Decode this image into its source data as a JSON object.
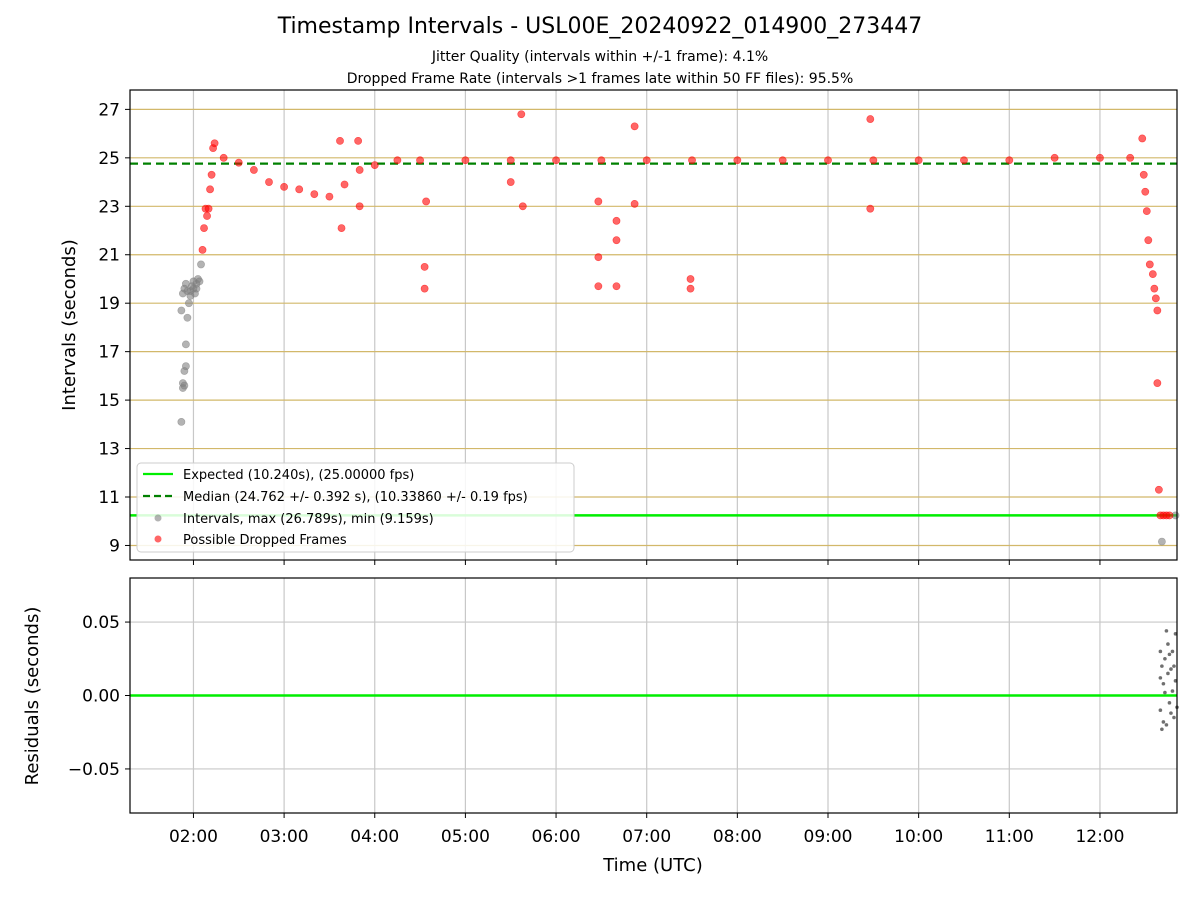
{
  "title": "Timestamp Intervals - USL00E_20240922_014900_273447",
  "subtitle1": "Jitter Quality (intervals within +/-1 frame): 4.1%",
  "subtitle2": "Dropped Frame Rate (intervals >1 frames late within 50 FF files): 95.5%",
  "colors": {
    "expected": "#00ee00",
    "median": "#008000",
    "intervals": "#808080",
    "dropped": "#ff0000",
    "hgrid_top": "#d2b86a",
    "grid": "#c8c8c8"
  },
  "chart_data": [
    {
      "type": "scatter",
      "panel": "intervals",
      "ylabel": "Intervals (seconds)",
      "xlabel": "",
      "xlim": [
        "01:18",
        "12:51"
      ],
      "ylim": [
        8.4,
        27.8
      ],
      "yticks": [
        9,
        11,
        13,
        15,
        17,
        19,
        21,
        23,
        25,
        27
      ],
      "expected_line": 10.24,
      "median_line": 24.762,
      "grid": true,
      "legend_position": "lower-left",
      "legend": [
        {
          "label": "Expected (10.240s), (25.00000 fps)",
          "style": "solid-line",
          "color": "#00ee00"
        },
        {
          "label": "Median (24.762 +/- 0.392 s), (10.33860 +/- 0.19 fps)",
          "style": "dashed-line",
          "color": "#008000"
        },
        {
          "label": "Intervals, max (26.789s), min (9.159s)",
          "style": "marker",
          "color": "#808080"
        },
        {
          "label": "Possible Dropped Frames",
          "style": "marker",
          "color": "#ff0000"
        }
      ],
      "series": [
        {
          "name": "Intervals, max (26.789s), min (9.159s)",
          "points": [
            [
              "01:52",
              14.1
            ],
            [
              "01:53",
              15.5
            ],
            [
              "01:53",
              15.7
            ],
            [
              "01:54",
              15.6
            ],
            [
              "01:54",
              16.2
            ],
            [
              "01:55",
              16.4
            ],
            [
              "01:55",
              17.3
            ],
            [
              "01:52",
              18.7
            ],
            [
              "01:53",
              19.4
            ],
            [
              "01:54",
              19.6
            ],
            [
              "01:55",
              19.8
            ],
            [
              "01:56",
              18.4
            ],
            [
              "01:57",
              19.0
            ],
            [
              "01:58",
              19.5
            ],
            [
              "01:59",
              19.7
            ],
            [
              "02:00",
              19.6
            ],
            [
              "02:01",
              19.4
            ],
            [
              "02:02",
              19.8
            ],
            [
              "02:03",
              20.0
            ],
            [
              "02:04",
              19.9
            ],
            [
              "02:05",
              20.6
            ],
            [
              "01:56",
              19.5
            ],
            [
              "01:58",
              19.3
            ],
            [
              "02:00",
              19.9
            ],
            [
              "02:02",
              19.6
            ],
            [
              "12:41",
              9.16
            ],
            [
              "12:50",
              10.24
            ]
          ]
        },
        {
          "name": "Possible Dropped Frames",
          "points": [
            [
              "02:06",
              21.2
            ],
            [
              "02:07",
              22.1
            ],
            [
              "02:08",
              22.9
            ],
            [
              "02:09",
              22.6
            ],
            [
              "02:10",
              22.9
            ],
            [
              "02:11",
              23.7
            ],
            [
              "02:12",
              24.3
            ],
            [
              "02:13",
              25.4
            ],
            [
              "02:14",
              25.6
            ],
            [
              "02:20",
              25.0
            ],
            [
              "02:30",
              24.8
            ],
            [
              "02:40",
              24.5
            ],
            [
              "02:50",
              24.0
            ],
            [
              "03:00",
              23.8
            ],
            [
              "03:10",
              23.7
            ],
            [
              "03:20",
              23.5
            ],
            [
              "03:30",
              23.4
            ],
            [
              "03:40",
              23.9
            ],
            [
              "03:50",
              24.5
            ],
            [
              "04:00",
              24.7
            ],
            [
              "04:15",
              24.9
            ],
            [
              "04:30",
              24.9
            ],
            [
              "05:00",
              24.9
            ],
            [
              "05:30",
              24.9
            ],
            [
              "06:00",
              24.9
            ],
            [
              "06:30",
              24.9
            ],
            [
              "07:00",
              24.9
            ],
            [
              "07:30",
              24.9
            ],
            [
              "08:00",
              24.9
            ],
            [
              "08:30",
              24.9
            ],
            [
              "09:00",
              24.9
            ],
            [
              "09:30",
              24.9
            ],
            [
              "10:00",
              24.9
            ],
            [
              "10:30",
              24.9
            ],
            [
              "11:00",
              24.9
            ],
            [
              "11:30",
              25.0
            ],
            [
              "12:00",
              25.0
            ],
            [
              "12:20",
              25.0
            ],
            [
              "12:28",
              25.8
            ],
            [
              "03:38",
              22.1
            ],
            [
              "03:37",
              25.7
            ],
            [
              "03:49",
              25.7
            ],
            [
              "03:50",
              23.0
            ],
            [
              "04:33",
              20.5
            ],
            [
              "04:33",
              19.6
            ],
            [
              "04:34",
              23.2
            ],
            [
              "05:30",
              24.0
            ],
            [
              "05:37",
              26.8
            ],
            [
              "05:38",
              23.0
            ],
            [
              "06:28",
              23.2
            ],
            [
              "06:28",
              20.9
            ],
            [
              "06:28",
              19.7
            ],
            [
              "06:40",
              22.4
            ],
            [
              "06:40",
              21.6
            ],
            [
              "06:40",
              19.7
            ],
            [
              "06:52",
              26.3
            ],
            [
              "06:52",
              23.1
            ],
            [
              "07:29",
              20.0
            ],
            [
              "07:29",
              19.6
            ],
            [
              "09:28",
              26.6
            ],
            [
              "09:28",
              22.9
            ],
            [
              "12:29",
              24.3
            ],
            [
              "12:30",
              23.6
            ],
            [
              "12:31",
              22.8
            ],
            [
              "12:32",
              21.6
            ],
            [
              "12:33",
              20.6
            ],
            [
              "12:35",
              20.2
            ],
            [
              "12:36",
              19.6
            ],
            [
              "12:37",
              19.2
            ],
            [
              "12:38",
              18.7
            ],
            [
              "12:38",
              15.7
            ],
            [
              "12:39",
              11.3
            ],
            [
              "12:40",
              10.24
            ],
            [
              "12:42",
              10.24
            ],
            [
              "12:44",
              10.24
            ],
            [
              "12:46",
              10.24
            ]
          ]
        }
      ]
    },
    {
      "type": "scatter",
      "panel": "residuals",
      "ylabel": "Residuals (seconds)",
      "xlabel": "Time (UTC)",
      "xlim": [
        "01:18",
        "12:51"
      ],
      "ylim": [
        -0.08,
        0.08
      ],
      "yticks": [
        "0.05",
        "0.00",
        "−0.05"
      ],
      "xticks": [
        "02:00",
        "03:00",
        "04:00",
        "05:00",
        "06:00",
        "07:00",
        "08:00",
        "09:00",
        "10:00",
        "11:00",
        "12:00"
      ],
      "zero_line": 0.0,
      "grid": true,
      "series": [
        {
          "points": [
            [
              "12:40",
              0.03
            ],
            [
              "12:40",
              0.012
            ],
            [
              "12:40",
              -0.01
            ],
            [
              "12:41",
              0.02
            ],
            [
              "12:41",
              -0.023
            ],
            [
              "12:42",
              0.008
            ],
            [
              "12:42",
              -0.018
            ],
            [
              "12:43",
              0.025
            ],
            [
              "12:43",
              0.002
            ],
            [
              "12:44",
              0.044
            ],
            [
              "12:44",
              -0.02
            ],
            [
              "12:45",
              0.035
            ],
            [
              "12:45",
              0.015
            ],
            [
              "12:46",
              -0.005
            ],
            [
              "12:46",
              0.028
            ],
            [
              "12:47",
              0.018
            ],
            [
              "12:47",
              -0.012
            ],
            [
              "12:48",
              0.03
            ],
            [
              "12:48",
              0.003
            ],
            [
              "12:49",
              0.02
            ],
            [
              "12:49",
              -0.015
            ],
            [
              "12:50",
              0.01
            ],
            [
              "12:50",
              0.042
            ],
            [
              "12:51",
              -0.008
            ]
          ]
        }
      ]
    }
  ]
}
